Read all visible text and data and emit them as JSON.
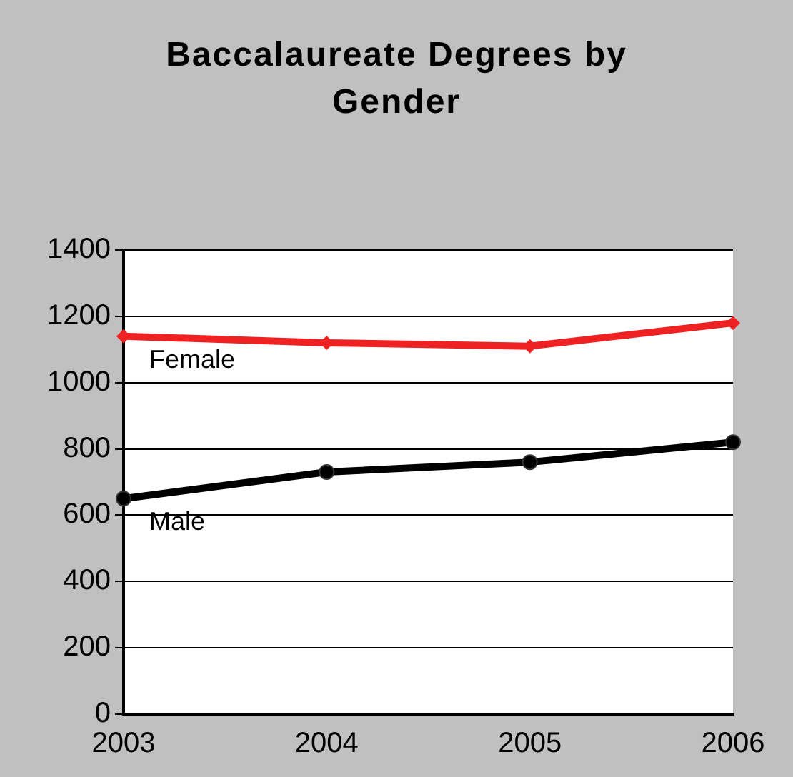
{
  "chart_data": {
    "type": "line",
    "title": "Baccalaureate Degrees by Gender",
    "categories": [
      "2003",
      "2004",
      "2005",
      "2006"
    ],
    "series": [
      {
        "name": "Female",
        "color": "#ee2222",
        "marker": "diamond",
        "values": [
          1140,
          1120,
          1110,
          1180
        ]
      },
      {
        "name": "Male",
        "color": "#000000",
        "marker": "circle",
        "values": [
          650,
          730,
          760,
          820
        ]
      }
    ],
    "ylim": [
      0,
      1400
    ],
    "yticks": [
      0,
      200,
      400,
      600,
      800,
      1000,
      1200,
      1400
    ],
    "grid": "y",
    "legend": false
  }
}
